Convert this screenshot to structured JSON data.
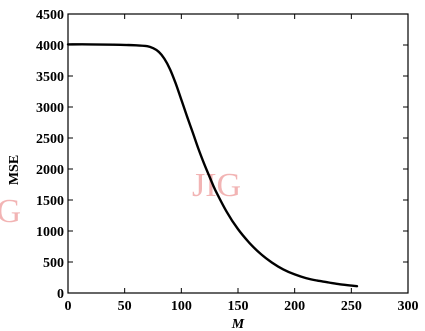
{
  "chart_data": {
    "type": "line",
    "xlabel": "M",
    "ylabel": "MSE",
    "xlim": [
      0,
      300
    ],
    "ylim": [
      0,
      4500
    ],
    "xticks": [
      0,
      50,
      100,
      150,
      200,
      250,
      300
    ],
    "yticks": [
      0,
      500,
      1000,
      1500,
      2000,
      2500,
      3000,
      3500,
      4000,
      4500
    ],
    "grid": false,
    "legend": "none",
    "series": [
      {
        "color": "#000000",
        "x": [
          0,
          20,
          40,
          60,
          70,
          75,
          80,
          85,
          90,
          95,
          100,
          105,
          110,
          115,
          120,
          125,
          130,
          140,
          150,
          160,
          170,
          180,
          190,
          200,
          210,
          220,
          230,
          240,
          250,
          255
        ],
        "y": [
          4010,
          4010,
          4005,
          3995,
          3980,
          3950,
          3890,
          3780,
          3610,
          3380,
          3120,
          2850,
          2590,
          2330,
          2090,
          1870,
          1660,
          1310,
          1030,
          810,
          630,
          490,
          380,
          300,
          240,
          200,
          170,
          140,
          120,
          110
        ]
      }
    ]
  },
  "watermarks": [
    "JIG",
    "JIG"
  ]
}
